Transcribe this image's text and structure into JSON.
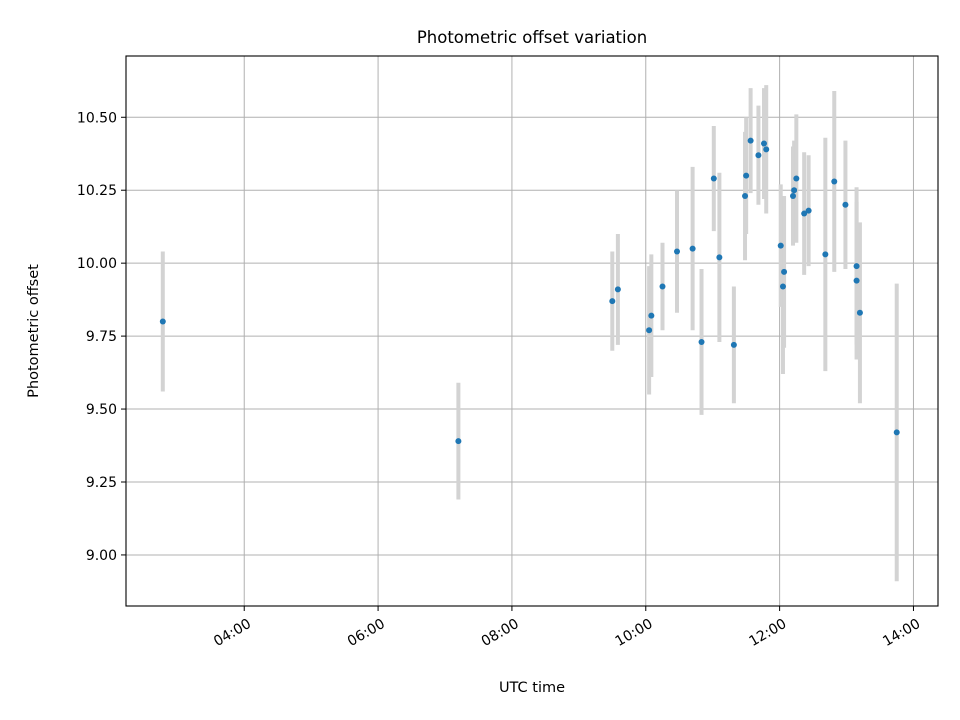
{
  "chart_data": {
    "type": "scatter",
    "title": "Photometric offset variation",
    "xlabel": "UTC time",
    "ylabel": "Photometric offset",
    "x_tick_labels": [
      "04:00",
      "06:00",
      "08:00",
      "10:00",
      "12:00",
      "14:00"
    ],
    "y_tick_labels": [
      "9.00",
      "9.25",
      "9.50",
      "9.75",
      "10.00",
      "10.25",
      "10.50"
    ],
    "y_ticks": [
      9.0,
      9.25,
      9.5,
      9.75,
      10.0,
      10.25,
      10.5
    ],
    "x_ticks": [
      "04:00",
      "06:00",
      "08:00",
      "10:00",
      "12:00",
      "14:00"
    ],
    "xlim": [
      "02:14",
      "14:22"
    ],
    "ylim": [
      8.825,
      10.71
    ],
    "grid": true,
    "colors": {
      "points": "#1f77b4",
      "errorbars": "#d3d3d3",
      "grid": "#b0b0b0"
    },
    "series": [
      {
        "points": [
          {
            "x": "02:47",
            "y": 9.8,
            "err": 0.24
          },
          {
            "x": "07:12",
            "y": 9.39,
            "err": 0.2
          },
          {
            "x": "09:30",
            "y": 9.87,
            "err": 0.17
          },
          {
            "x": "09:35",
            "y": 9.91,
            "err": 0.19
          },
          {
            "x": "10:03",
            "y": 9.77,
            "err": 0.22
          },
          {
            "x": "10:05",
            "y": 9.82,
            "err": 0.21
          },
          {
            "x": "10:15",
            "y": 9.92,
            "err": 0.15
          },
          {
            "x": "10:28",
            "y": 10.04,
            "err": 0.21
          },
          {
            "x": "10:42",
            "y": 10.05,
            "err": 0.28
          },
          {
            "x": "10:50",
            "y": 9.73,
            "err": 0.25
          },
          {
            "x": "11:01",
            "y": 10.29,
            "err": 0.18
          },
          {
            "x": "11:06",
            "y": 10.02,
            "err": 0.29
          },
          {
            "x": "11:19",
            "y": 9.72,
            "err": 0.2
          },
          {
            "x": "11:29",
            "y": 10.23,
            "err": 0.22
          },
          {
            "x": "11:30",
            "y": 10.3,
            "err": 0.2
          },
          {
            "x": "11:34",
            "y": 10.42,
            "err": 0.18
          },
          {
            "x": "11:41",
            "y": 10.37,
            "err": 0.17
          },
          {
            "x": "11:46",
            "y": 10.41,
            "err": 0.19
          },
          {
            "x": "11:48",
            "y": 10.39,
            "err": 0.22
          },
          {
            "x": "12:01",
            "y": 10.06,
            "err": 0.21
          },
          {
            "x": "12:03",
            "y": 9.92,
            "err": 0.3
          },
          {
            "x": "12:04",
            "y": 9.97,
            "err": 0.26
          },
          {
            "x": "12:12",
            "y": 10.23,
            "err": 0.17
          },
          {
            "x": "12:13",
            "y": 10.25,
            "err": 0.17
          },
          {
            "x": "12:15",
            "y": 10.29,
            "err": 0.22
          },
          {
            "x": "12:22",
            "y": 10.17,
            "err": 0.21
          },
          {
            "x": "12:26",
            "y": 10.18,
            "err": 0.19
          },
          {
            "x": "12:41",
            "y": 10.03,
            "err": 0.4
          },
          {
            "x": "12:49",
            "y": 10.28,
            "err": 0.31
          },
          {
            "x": "12:59",
            "y": 10.2,
            "err": 0.22
          },
          {
            "x": "13:09",
            "y": 9.99,
            "err": 0.27
          },
          {
            "x": "13:09",
            "y": 9.94,
            "err": 0.27
          },
          {
            "x": "13:12",
            "y": 9.83,
            "err": 0.31
          },
          {
            "x": "13:45",
            "y": 9.42,
            "err": 0.51
          }
        ]
      }
    ]
  }
}
